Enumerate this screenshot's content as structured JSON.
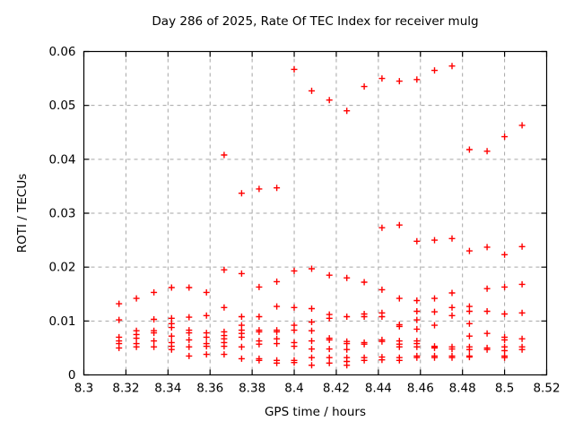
{
  "chart_data": {
    "type": "scatter",
    "title": "Day 286 of 2025, Rate Of TEC Index for receiver mulg",
    "xlabel": "GPS time / hours",
    "ylabel": "ROTI / TECUs",
    "xlim": [
      8.3,
      8.52
    ],
    "ylim": [
      0,
      0.06
    ],
    "x_tick_values": [
      8.3,
      8.32,
      8.34,
      8.36,
      8.38,
      8.4,
      8.42,
      8.44,
      8.46,
      8.48,
      8.5,
      8.52
    ],
    "x_tick_labels": [
      "8.3",
      "8.32",
      "8.34",
      "8.36",
      "8.38",
      "8.4",
      "8.42",
      "8.44",
      "8.46",
      "8.48",
      "8.5",
      "8.52"
    ],
    "y_tick_values": [
      0,
      0.01,
      0.02,
      0.03,
      0.04,
      0.05,
      0.06
    ],
    "y_tick_labels": [
      "0",
      "0.01",
      "0.02",
      "0.03",
      "0.04",
      "0.05",
      "0.06"
    ],
    "grid": true,
    "grid_style": "dashed",
    "grid_color": "#a6a6a6",
    "frame_color": "#000000",
    "legend": "none",
    "marker": {
      "shape": "plus",
      "color": "#ff0000",
      "size": 7
    },
    "series": [
      {
        "name": "ROTI",
        "points": [
          [
            8.3167,
            0.0132
          ],
          [
            8.3167,
            0.0102
          ],
          [
            8.3167,
            0.007
          ],
          [
            8.3167,
            0.0063
          ],
          [
            8.3167,
            0.0058
          ],
          [
            8.3167,
            0.005
          ],
          [
            8.325,
            0.0142
          ],
          [
            8.325,
            0.0082
          ],
          [
            8.325,
            0.0075
          ],
          [
            8.325,
            0.0068
          ],
          [
            8.325,
            0.0058
          ],
          [
            8.325,
            0.0052
          ],
          [
            8.3333,
            0.0153
          ],
          [
            8.3333,
            0.0103
          ],
          [
            8.3333,
            0.0082
          ],
          [
            8.3333,
            0.0078
          ],
          [
            8.3333,
            0.0063
          ],
          [
            8.3333,
            0.0052
          ],
          [
            8.3417,
            0.0162
          ],
          [
            8.3417,
            0.0105
          ],
          [
            8.3417,
            0.0095
          ],
          [
            8.3417,
            0.0088
          ],
          [
            8.3417,
            0.0072
          ],
          [
            8.3417,
            0.006
          ],
          [
            8.3417,
            0.0053
          ],
          [
            8.3417,
            0.0047
          ],
          [
            8.35,
            0.0162
          ],
          [
            8.35,
            0.0107
          ],
          [
            8.35,
            0.0083
          ],
          [
            8.35,
            0.0078
          ],
          [
            8.35,
            0.0065
          ],
          [
            8.35,
            0.0052
          ],
          [
            8.35,
            0.0035
          ],
          [
            8.3583,
            0.0153
          ],
          [
            8.3583,
            0.011
          ],
          [
            8.3583,
            0.0078
          ],
          [
            8.3583,
            0.007
          ],
          [
            8.3583,
            0.0058
          ],
          [
            8.3583,
            0.0053
          ],
          [
            8.3583,
            0.0038
          ],
          [
            8.3667,
            0.0408
          ],
          [
            8.3667,
            0.0195
          ],
          [
            8.3667,
            0.0125
          ],
          [
            8.3667,
            0.008
          ],
          [
            8.3667,
            0.0073
          ],
          [
            8.3667,
            0.0067
          ],
          [
            8.3667,
            0.006
          ],
          [
            8.3667,
            0.0053
          ],
          [
            8.3667,
            0.0038
          ],
          [
            8.375,
            0.0337
          ],
          [
            8.375,
            0.0188
          ],
          [
            8.375,
            0.0108
          ],
          [
            8.375,
            0.0092
          ],
          [
            8.375,
            0.0083
          ],
          [
            8.375,
            0.0077
          ],
          [
            8.375,
            0.007
          ],
          [
            8.375,
            0.0052
          ],
          [
            8.375,
            0.003
          ],
          [
            8.3833,
            0.0345
          ],
          [
            8.3833,
            0.0163
          ],
          [
            8.3833,
            0.0108
          ],
          [
            8.3833,
            0.0083
          ],
          [
            8.3833,
            0.008
          ],
          [
            8.3833,
            0.0063
          ],
          [
            8.3833,
            0.0057
          ],
          [
            8.3833,
            0.003
          ],
          [
            8.3833,
            0.0027
          ],
          [
            8.3917,
            0.0347
          ],
          [
            8.3917,
            0.0173
          ],
          [
            8.3917,
            0.0127
          ],
          [
            8.3917,
            0.0083
          ],
          [
            8.3917,
            0.008
          ],
          [
            8.3917,
            0.0067
          ],
          [
            8.3917,
            0.0058
          ],
          [
            8.3917,
            0.0027
          ],
          [
            8.3917,
            0.0022
          ],
          [
            8.4,
            0.0567
          ],
          [
            8.4,
            0.0193
          ],
          [
            8.4,
            0.0125
          ],
          [
            8.4,
            0.0092
          ],
          [
            8.4,
            0.0083
          ],
          [
            8.4,
            0.006
          ],
          [
            8.4,
            0.0053
          ],
          [
            8.4,
            0.0027
          ],
          [
            8.4,
            0.0023
          ],
          [
            8.4083,
            0.0527
          ],
          [
            8.4083,
            0.0197
          ],
          [
            8.4083,
            0.0123
          ],
          [
            8.4083,
            0.0098
          ],
          [
            8.4083,
            0.0082
          ],
          [
            8.4083,
            0.0063
          ],
          [
            8.4083,
            0.0048
          ],
          [
            8.4083,
            0.0032
          ],
          [
            8.4083,
            0.0018
          ],
          [
            8.4167,
            0.051
          ],
          [
            8.4167,
            0.0185
          ],
          [
            8.4167,
            0.0112
          ],
          [
            8.4167,
            0.0105
          ],
          [
            8.4167,
            0.0068
          ],
          [
            8.4167,
            0.0065
          ],
          [
            8.4167,
            0.0048
          ],
          [
            8.4167,
            0.0032
          ],
          [
            8.4167,
            0.0022
          ],
          [
            8.425,
            0.049
          ],
          [
            8.425,
            0.018
          ],
          [
            8.425,
            0.0108
          ],
          [
            8.425,
            0.0062
          ],
          [
            8.425,
            0.0058
          ],
          [
            8.425,
            0.0047
          ],
          [
            8.425,
            0.0032
          ],
          [
            8.425,
            0.0025
          ],
          [
            8.425,
            0.0018
          ],
          [
            8.4333,
            0.0535
          ],
          [
            8.4333,
            0.0172
          ],
          [
            8.4333,
            0.0113
          ],
          [
            8.4333,
            0.0108
          ],
          [
            8.4333,
            0.006
          ],
          [
            8.4333,
            0.0057
          ],
          [
            8.4333,
            0.0032
          ],
          [
            8.4333,
            0.0027
          ],
          [
            8.4417,
            0.055
          ],
          [
            8.4417,
            0.0273
          ],
          [
            8.4417,
            0.0158
          ],
          [
            8.4417,
            0.0115
          ],
          [
            8.4417,
            0.0108
          ],
          [
            8.4417,
            0.0065
          ],
          [
            8.4417,
            0.0062
          ],
          [
            8.4417,
            0.0033
          ],
          [
            8.4417,
            0.0028
          ],
          [
            8.45,
            0.0545
          ],
          [
            8.45,
            0.0278
          ],
          [
            8.45,
            0.0142
          ],
          [
            8.45,
            0.0093
          ],
          [
            8.45,
            0.009
          ],
          [
            8.45,
            0.0063
          ],
          [
            8.45,
            0.0057
          ],
          [
            8.45,
            0.0052
          ],
          [
            8.45,
            0.0032
          ],
          [
            8.45,
            0.0027
          ],
          [
            8.4583,
            0.0548
          ],
          [
            8.4583,
            0.0248
          ],
          [
            8.4583,
            0.0138
          ],
          [
            8.4583,
            0.0118
          ],
          [
            8.4583,
            0.0102
          ],
          [
            8.4583,
            0.0085
          ],
          [
            8.4583,
            0.0063
          ],
          [
            8.4583,
            0.0058
          ],
          [
            8.4583,
            0.0052
          ],
          [
            8.4583,
            0.0035
          ],
          [
            8.4583,
            0.0032
          ],
          [
            8.4667,
            0.0565
          ],
          [
            8.4667,
            0.025
          ],
          [
            8.4667,
            0.0142
          ],
          [
            8.4667,
            0.0117
          ],
          [
            8.4667,
            0.0092
          ],
          [
            8.4667,
            0.0053
          ],
          [
            8.4667,
            0.0052
          ],
          [
            8.4667,
            0.005
          ],
          [
            8.4667,
            0.0035
          ],
          [
            8.4667,
            0.0032
          ],
          [
            8.475,
            0.0573
          ],
          [
            8.475,
            0.0253
          ],
          [
            8.475,
            0.0152
          ],
          [
            8.475,
            0.0125
          ],
          [
            8.475,
            0.011
          ],
          [
            8.475,
            0.0052
          ],
          [
            8.475,
            0.0048
          ],
          [
            8.475,
            0.0035
          ],
          [
            8.475,
            0.0032
          ],
          [
            8.4833,
            0.0418
          ],
          [
            8.4833,
            0.023
          ],
          [
            8.4833,
            0.0127
          ],
          [
            8.4833,
            0.0118
          ],
          [
            8.4833,
            0.0095
          ],
          [
            8.4833,
            0.0072
          ],
          [
            8.4833,
            0.0052
          ],
          [
            8.4833,
            0.0047
          ],
          [
            8.4833,
            0.0035
          ],
          [
            8.4833,
            0.0033
          ],
          [
            8.4917,
            0.0415
          ],
          [
            8.4917,
            0.0237
          ],
          [
            8.4917,
            0.016
          ],
          [
            8.4917,
            0.0118
          ],
          [
            8.4917,
            0.0077
          ],
          [
            8.4917,
            0.005
          ],
          [
            8.4917,
            0.0047
          ],
          [
            8.5,
            0.0442
          ],
          [
            8.5,
            0.0223
          ],
          [
            8.5,
            0.0163
          ],
          [
            8.5,
            0.0113
          ],
          [
            8.5,
            0.007
          ],
          [
            8.5,
            0.0065
          ],
          [
            8.5,
            0.0052
          ],
          [
            8.5,
            0.0045
          ],
          [
            8.5,
            0.0035
          ],
          [
            8.5,
            0.0032
          ],
          [
            8.5083,
            0.0463
          ],
          [
            8.5083,
            0.0238
          ],
          [
            8.5083,
            0.0168
          ],
          [
            8.5083,
            0.0115
          ],
          [
            8.5083,
            0.0067
          ],
          [
            8.5083,
            0.0052
          ],
          [
            8.5083,
            0.0047
          ]
        ]
      }
    ]
  }
}
